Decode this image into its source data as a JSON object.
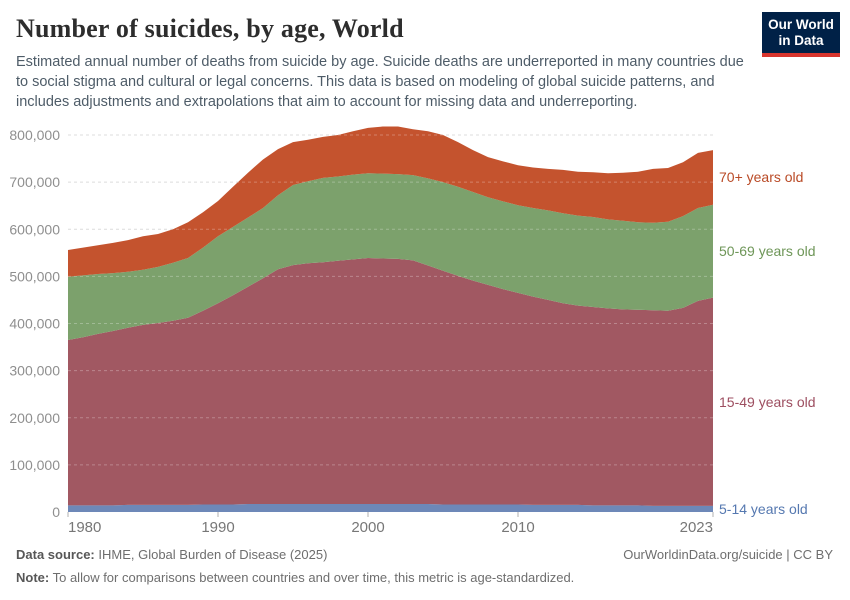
{
  "header": {
    "title": "Number of suicides, by age, World",
    "subtitle": "Estimated annual number of deaths from suicide by age. Suicide deaths are underreported in many countries due to social stigma and cultural or legal concerns. This data is based on modeling of global suicide patterns, and includes adjustments and extrapolations that aim to account for missing data and underreporting."
  },
  "logo": {
    "line1": "Our World",
    "line2": "in Data",
    "bg_color": "#002147",
    "accent_color": "#d8352e"
  },
  "chart_data": {
    "type": "area",
    "stacked": true,
    "title": "Number of suicides, by age, World",
    "xlabel": "",
    "ylabel": "",
    "ylim": [
      0,
      800000
    ],
    "grid": "dashed horizontal",
    "legend_position": "right-edge-labels",
    "x": [
      1980,
      1981,
      1982,
      1983,
      1984,
      1985,
      1986,
      1987,
      1988,
      1989,
      1990,
      1991,
      1992,
      1993,
      1994,
      1995,
      1996,
      1997,
      1998,
      1999,
      2000,
      2001,
      2002,
      2003,
      2004,
      2005,
      2006,
      2007,
      2008,
      2009,
      2010,
      2011,
      2012,
      2013,
      2014,
      2015,
      2016,
      2017,
      2018,
      2019,
      2020,
      2021,
      2022,
      2023
    ],
    "x_ticks": [
      1980,
      1990,
      2000,
      2010,
      2023
    ],
    "y_ticks": [
      0,
      100000,
      200000,
      300000,
      400000,
      500000,
      600000,
      700000,
      800000
    ],
    "series": [
      {
        "name": "5-14 years old",
        "color": "#6d88b8",
        "label_color": "#5578b0",
        "values": [
          14000,
          14000,
          14000,
          14000,
          15000,
          15000,
          15000,
          15000,
          15000,
          16000,
          16000,
          16000,
          17000,
          17000,
          17000,
          17000,
          17000,
          17000,
          17000,
          17000,
          17000,
          17000,
          17000,
          17000,
          17000,
          16000,
          16000,
          16000,
          16000,
          16000,
          16000,
          15000,
          15000,
          15000,
          15000,
          14000,
          14000,
          14000,
          14000,
          13000,
          13000,
          13000,
          13000,
          13000
        ]
      },
      {
        "name": "15-49 years old",
        "color": "#a15862",
        "label_color": "#9d4e60",
        "values": [
          351000,
          357000,
          364000,
          370000,
          376000,
          382000,
          386000,
          391000,
          397000,
          411000,
          427000,
          444000,
          461000,
          479000,
          498000,
          507000,
          511000,
          513000,
          516000,
          519000,
          522000,
          521000,
          520000,
          517000,
          506000,
          496000,
          485000,
          475000,
          466000,
          457000,
          449000,
          442000,
          435000,
          428000,
          423000,
          421000,
          418000,
          416000,
          415000,
          415000,
          414000,
          420000,
          435000,
          442000
        ]
      },
      {
        "name": "50-69 years old",
        "color": "#7ca16c",
        "label_color": "#6e9658",
        "values": [
          134000,
          131000,
          127000,
          123000,
          119000,
          117000,
          119000,
          123000,
          127000,
          134000,
          142000,
          145000,
          147000,
          149000,
          157000,
          170000,
          174000,
          179000,
          179000,
          180000,
          180000,
          180000,
          180000,
          181000,
          185000,
          188000,
          189000,
          188000,
          186000,
          186000,
          186000,
          188000,
          190000,
          191000,
          191000,
          191000,
          189000,
          188000,
          186000,
          186000,
          189000,
          195000,
          197000,
          197000
        ]
      },
      {
        "name": "70+ years old",
        "color": "#c4532e",
        "label_color": "#b94a26",
        "values": [
          57000,
          59000,
          61000,
          64000,
          67000,
          71000,
          70000,
          71000,
          76000,
          75000,
          75000,
          85000,
          95000,
          103000,
          98000,
          91000,
          88000,
          87000,
          88000,
          92000,
          96000,
          100000,
          101000,
          97000,
          100000,
          100000,
          95000,
          89000,
          85000,
          85000,
          85000,
          86000,
          88000,
          92000,
          93000,
          95000,
          98000,
          102000,
          107000,
          114000,
          114000,
          114000,
          117000,
          116000
        ]
      }
    ]
  },
  "footer": {
    "datasource_label": "Data source:",
    "datasource_text": "IHME, Global Burden of Disease (2025)",
    "note_label": "Note:",
    "note_text": "To allow for comparisons between countries and over time, this metric is age-standardized.",
    "link_text": "OurWorldinData.org/suicide | CC BY"
  }
}
